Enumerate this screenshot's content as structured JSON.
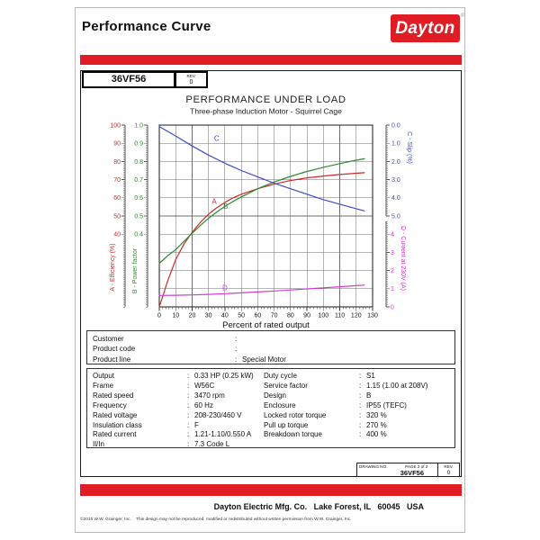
{
  "sep": ":",
  "header": {
    "title": "Performance Curve",
    "brand": "Dayton",
    "brand_reg": "®",
    "brand_color": "#e01d25"
  },
  "model_box": {
    "model": "36VF56",
    "rev_label": "REV.",
    "rev_value": "0"
  },
  "chart_data": {
    "type": "line",
    "title": "PERFORMANCE UNDER LOAD",
    "subtitle": "Three-phase Induction Motor - Squirrel Cage",
    "xlabel": "Percent of rated output",
    "xlim": [
      0,
      130
    ],
    "x_ticks": [
      0,
      10,
      20,
      30,
      40,
      50,
      60,
      70,
      80,
      90,
      100,
      110,
      120,
      130
    ],
    "grid": true,
    "axes": {
      "efficiency": {
        "title": "A - Efficiency (%)",
        "color": "#cc2b2b",
        "min": 0,
        "max": 100,
        "ticks": [
          100,
          90,
          80,
          70,
          60,
          50,
          40
        ],
        "decimals": 0,
        "inverted": false,
        "side": "left"
      },
      "power_factor": {
        "title": "B - Power factor",
        "color": "#2f8b2f",
        "min": 0,
        "max": 1,
        "ticks": [
          1.0,
          0.9,
          0.8,
          0.7,
          0.6,
          0.5,
          0.4
        ],
        "decimals": 1,
        "inverted": false,
        "side": "left"
      },
      "slip": {
        "title": "C - Slip (%)",
        "color": "#3d4ec6",
        "min": 0,
        "max": 10,
        "ticks": [
          0,
          1,
          2,
          3,
          4,
          5
        ],
        "decimals": 1,
        "inverted": true,
        "side": "right"
      },
      "current": {
        "title": "D - Current at 230V (A)",
        "color": "#d23bd2",
        "min": 0,
        "max": 10,
        "ticks": [
          4,
          3,
          2,
          1,
          0
        ],
        "decimals": 0,
        "inverted": false,
        "side": "right"
      }
    },
    "series": [
      {
        "name": "A - Efficiency (%)",
        "axis": "efficiency",
        "x": [
          0,
          2.5,
          5,
          10,
          15,
          20,
          25,
          30,
          35,
          40,
          45,
          50,
          60,
          70,
          80,
          90,
          100,
          110,
          120,
          125
        ],
        "values": [
          0,
          7,
          14,
          26,
          34.5,
          41,
          46.5,
          51,
          54.5,
          57.5,
          60,
          62,
          65,
          67.5,
          69.5,
          71,
          72,
          72.8,
          73.5,
          73.8
        ]
      },
      {
        "name": "B - Power factor",
        "axis": "power_factor",
        "x": [
          0,
          2.5,
          5,
          10,
          15,
          20,
          25,
          30,
          35,
          40,
          45,
          50,
          60,
          70,
          80,
          90,
          100,
          110,
          120,
          125
        ],
        "values": [
          0.24,
          0.26,
          0.28,
          0.315,
          0.36,
          0.405,
          0.448,
          0.487,
          0.522,
          0.553,
          0.58,
          0.605,
          0.65,
          0.687,
          0.718,
          0.745,
          0.768,
          0.788,
          0.807,
          0.815
        ]
      },
      {
        "name": "C - Slip (%)",
        "axis": "slip",
        "x": [
          0,
          10,
          20,
          30,
          40,
          50,
          60,
          70,
          80,
          90,
          100,
          110,
          120,
          125
        ],
        "values": [
          0.08,
          0.6,
          1.15,
          1.65,
          2.1,
          2.5,
          2.85,
          3.2,
          3.5,
          3.8,
          4.1,
          4.35,
          4.6,
          4.72
        ]
      },
      {
        "name": "D - Current at 230V (A)",
        "axis": "current",
        "x": [
          0,
          10,
          20,
          30,
          40,
          50,
          60,
          70,
          80,
          90,
          100,
          110,
          120,
          125
        ],
        "values": [
          0.63,
          0.64,
          0.66,
          0.69,
          0.73,
          0.77,
          0.82,
          0.875,
          0.93,
          0.99,
          1.05,
          1.11,
          1.17,
          1.2
        ]
      }
    ],
    "annotations": [
      {
        "text": "C",
        "axis": "slip",
        "x": 35,
        "y": 0.75
      },
      {
        "text": "A",
        "axis": "efficiency",
        "x": 33.5,
        "y": 58
      },
      {
        "text": "B",
        "axis": "power_factor",
        "x": 40.5,
        "y": 0.553
      },
      {
        "text": "D",
        "axis": "current",
        "x": 40,
        "y": 1.05
      }
    ],
    "legend_position": "none"
  },
  "customer_box": {
    "rows": [
      {
        "label": "Customer",
        "value": ""
      },
      {
        "label": "Product code",
        "value": ""
      },
      {
        "label": "Product line",
        "value": "Special Motor"
      }
    ]
  },
  "specs": {
    "left": [
      {
        "label": "Output",
        "value": "0.33 HP (0.25 kW)"
      },
      {
        "label": "Frame",
        "value": "W56C"
      },
      {
        "label": "Rated speed",
        "value": "3470 rpm"
      },
      {
        "label": "Frequency",
        "value": "60 Hz"
      },
      {
        "label": "Rated voltage",
        "value": "208-230/460 V"
      },
      {
        "label": "Insulation class",
        "value": "F"
      },
      {
        "label": "Rated current",
        "value": "1.21-1.10/0.550 A"
      },
      {
        "label": "Il/In",
        "value": "7.3   Code L"
      }
    ],
    "right": [
      {
        "label": "Duty cycle",
        "value": "S1"
      },
      {
        "label": "Service factor",
        "value": "1.15   (1.00 at 208V)"
      },
      {
        "label": "Design",
        "value": "B"
      },
      {
        "label": "Enclosure",
        "value": "IP55 (TEFC)"
      },
      {
        "label": "Locked rotor torque",
        "value": "320 %"
      },
      {
        "label": "Pull up torque",
        "value": "270 %"
      },
      {
        "label": "Breakdown torque",
        "value": "400 %"
      }
    ]
  },
  "drawing_box": {
    "drawing_no_label": "DRAWING NO.",
    "page_label": "PAGE 2 of 2",
    "number": "36VF56",
    "rev_label": "REV.",
    "rev_value": "0"
  },
  "footer": {
    "company_line": "Dayton Electric Mfg. Co.   Lake Forest, IL   60045   USA",
    "copyright": "©2015 W.W. Grainger, Inc.    This design may not be reproduced, modified or redistributed without written permission from W.W. Grainger, Inc."
  }
}
